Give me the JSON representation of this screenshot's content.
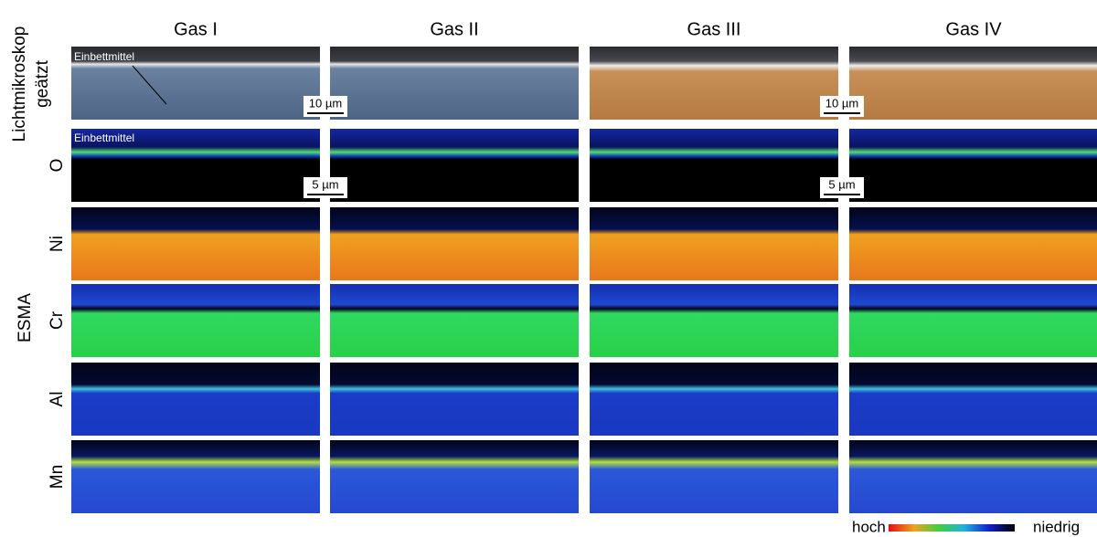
{
  "columns": [
    "Gas I",
    "Gas II",
    "Gas III",
    "Gas IV"
  ],
  "light_row": {
    "label_lines": [
      "Lichtmikroskop",
      "geätzt"
    ]
  },
  "esma": {
    "label": "ESMA",
    "rows": [
      "O",
      "Ni",
      "Cr",
      "Al",
      "Mn"
    ]
  },
  "annotations": {
    "embedding": "Einbettmittel"
  },
  "scale_bars": [
    "10 µm",
    "5 µm"
  ],
  "legend": {
    "high": "hoch",
    "low": "niedrig"
  }
}
